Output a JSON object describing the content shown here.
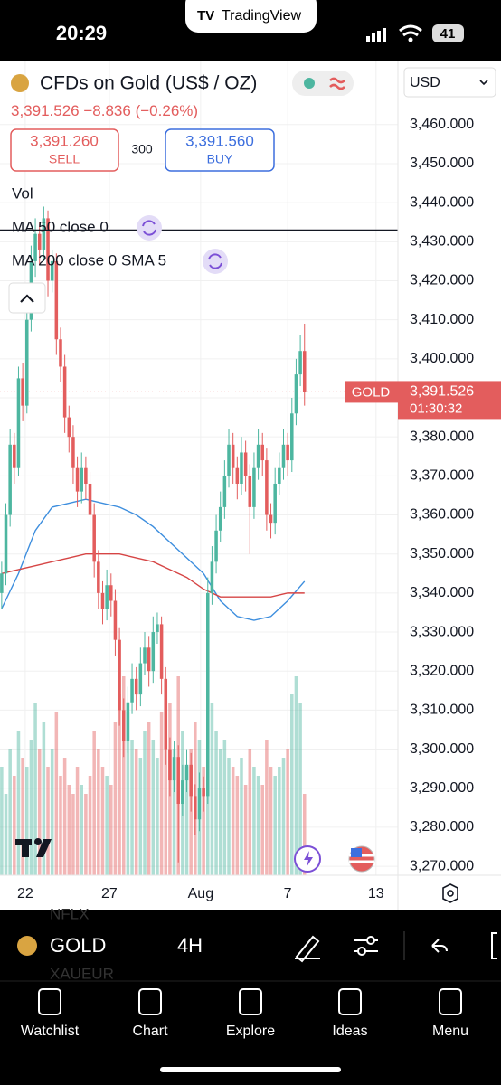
{
  "status_bar": {
    "time": "20:29",
    "app": "TradingView",
    "battery": "41"
  },
  "header": {
    "title": "CFDs on Gold (US$ / OZ)",
    "price": "3,391.526",
    "change": "−8.836",
    "change_pct": "(−0.26%)",
    "sell_price": "3,391.260",
    "sell": "SELL",
    "spread": "300",
    "buy_price": "3,391.560",
    "buy": "BUY",
    "volume_label": "Vol",
    "currency": "USD"
  },
  "chart_data": {
    "type": "candlestick",
    "candles": [
      [
        3340,
        3348,
        3336,
        3345
      ],
      [
        3345,
        3363,
        3342,
        3360
      ],
      [
        3360,
        3382,
        3357,
        3378
      ],
      [
        3378,
        3381,
        3368,
        3372
      ],
      [
        3372,
        3398,
        3370,
        3395
      ],
      [
        3395,
        3399,
        3384,
        3388
      ],
      [
        3388,
        3414,
        3386,
        3410
      ],
      [
        3410,
        3429,
        3407,
        3425
      ],
      [
        3425,
        3436,
        3421,
        3432
      ],
      [
        3432,
        3435,
        3424,
        3428
      ],
      [
        3428,
        3439,
        3425,
        3436
      ],
      [
        3436,
        3438,
        3416,
        3420
      ],
      [
        3420,
        3428,
        3417,
        3425
      ],
      [
        3425,
        3427,
        3401,
        3405
      ],
      [
        3405,
        3408,
        3394,
        3398
      ],
      [
        3398,
        3401,
        3381,
        3385
      ],
      [
        3385,
        3388,
        3376,
        3380
      ],
      [
        3380,
        3383,
        3368,
        3372
      ],
      [
        3372,
        3375,
        3362,
        3366
      ],
      [
        3366,
        3376,
        3363,
        3372
      ],
      [
        3372,
        3375,
        3364,
        3368
      ],
      [
        3368,
        3371,
        3356,
        3360
      ],
      [
        3360,
        3363,
        3344,
        3348
      ],
      [
        3348,
        3351,
        3336,
        3340
      ],
      [
        3340,
        3343,
        3332,
        3336
      ],
      [
        3336,
        3346,
        3333,
        3342
      ],
      [
        3342,
        3345,
        3334,
        3338
      ],
      [
        3338,
        3341,
        3324,
        3328
      ],
      [
        3328,
        3331,
        3306,
        3310
      ],
      [
        3310,
        3313,
        3298,
        3302
      ],
      [
        3302,
        3316,
        3299,
        3312
      ],
      [
        3312,
        3322,
        3309,
        3318
      ],
      [
        3318,
        3321,
        3310,
        3314
      ],
      [
        3314,
        3326,
        3311,
        3322
      ],
      [
        3322,
        3330,
        3319,
        3326
      ],
      [
        3326,
        3329,
        3316,
        3320
      ],
      [
        3320,
        3334,
        3317,
        3330
      ],
      [
        3330,
        3335,
        3327,
        3332
      ],
      [
        3332,
        3334,
        3314,
        3318
      ],
      [
        3318,
        3321,
        3296,
        3300
      ],
      [
        3300,
        3303,
        3288,
        3292
      ],
      [
        3292,
        3302,
        3289,
        3298
      ],
      [
        3298,
        3301,
        3271,
        3286
      ],
      [
        3286,
        3296,
        3283,
        3292
      ],
      [
        3292,
        3300,
        3289,
        3296
      ],
      [
        3296,
        3299,
        3284,
        3288
      ],
      [
        3288,
        3291,
        3278,
        3282
      ],
      [
        3282,
        3294,
        3279,
        3290
      ],
      [
        3290,
        3293,
        3284,
        3288
      ],
      [
        3288,
        3344,
        3286,
        3340
      ],
      [
        3340,
        3352,
        3337,
        3348
      ],
      [
        3348,
        3360,
        3345,
        3356
      ],
      [
        3356,
        3366,
        3353,
        3362
      ],
      [
        3362,
        3374,
        3359,
        3370
      ],
      [
        3370,
        3382,
        3367,
        3378
      ],
      [
        3378,
        3381,
        3368,
        3372
      ],
      [
        3372,
        3375,
        3364,
        3368
      ],
      [
        3368,
        3380,
        3365,
        3376
      ],
      [
        3376,
        3379,
        3366,
        3370
      ],
      [
        3370,
        3373,
        3350,
        3362
      ],
      [
        3362,
        3376,
        3359,
        3372
      ],
      [
        3372,
        3382,
        3369,
        3378
      ],
      [
        3378,
        3381,
        3370,
        3374
      ],
      [
        3374,
        3377,
        3356,
        3360
      ],
      [
        3360,
        3363,
        3354,
        3358
      ],
      [
        3358,
        3372,
        3355,
        3368
      ],
      [
        3368,
        3376,
        3365,
        3372
      ],
      [
        3372,
        3382,
        3369,
        3378
      ],
      [
        3378,
        3381,
        3370,
        3374
      ],
      [
        3374,
        3390,
        3371,
        3386
      ],
      [
        3386,
        3400,
        3383,
        3396
      ],
      [
        3396,
        3406,
        3393,
        3402
      ],
      [
        3402,
        3409,
        3388,
        3391.526
      ]
    ],
    "volume": [
      60,
      45,
      70,
      55,
      80,
      65,
      60,
      75,
      95,
      70,
      85,
      60,
      70,
      90,
      55,
      65,
      50,
      45,
      60,
      50,
      45,
      55,
      80,
      70,
      60,
      55,
      50,
      85,
      100,
      110,
      90,
      75,
      70,
      65,
      80,
      85,
      75,
      65,
      90,
      105,
      95,
      70,
      110,
      80,
      60,
      70,
      85,
      75,
      60,
      115,
      95,
      80,
      70,
      75,
      65,
      60,
      55,
      65,
      50,
      70,
      60,
      55,
      50,
      75,
      60,
      55,
      60,
      65,
      70,
      100,
      110,
      95,
      45
    ],
    "up_color": "#4db6a0",
    "down_color": "#e35d5d",
    "series": [
      {
        "name": "MA 50 close 0",
        "color": "#3d8ede",
        "x": [
          0,
          4,
          8,
          12,
          16,
          20,
          24,
          28,
          32,
          36,
          40,
          44,
          48,
          52,
          56,
          60,
          64,
          68,
          72
        ],
        "values": [
          3336,
          3345,
          3356,
          3362,
          3363,
          3364,
          3363,
          3362,
          3360,
          3357,
          3353,
          3349,
          3345,
          3338,
          3334,
          3333,
          3334,
          3338,
          3343
        ]
      },
      {
        "name": "MA 200 close 0 SMA 5",
        "color": "#d64545",
        "x": [
          0,
          4,
          8,
          12,
          16,
          20,
          24,
          28,
          32,
          36,
          40,
          44,
          48,
          52,
          56,
          60,
          64,
          68,
          72
        ],
        "values": [
          3345,
          3346,
          3347,
          3348,
          3349,
          3350,
          3350,
          3350,
          3349,
          3348,
          3346,
          3344,
          3341,
          3339,
          3339,
          3339,
          3339,
          3340,
          3340
        ]
      }
    ],
    "horizontal_line": 3433,
    "last_price": {
      "symbol": "GOLD",
      "value": 3391.526,
      "label": "3,391.526",
      "countdown": "01:30:32"
    },
    "xlim": [
      -0.4,
      94.2
    ],
    "xticks": [
      {
        "value": 5.6,
        "label": "22"
      },
      {
        "value": 25.6,
        "label": "27"
      },
      {
        "value": 47.3,
        "label": "Aug"
      },
      {
        "value": 68,
        "label": "7"
      },
      {
        "value": 89,
        "label": "13"
      }
    ],
    "ylim": [
      3267.7,
      3476.4
    ],
    "yticks": [
      {
        "value": 3270,
        "label": "3,270.000"
      },
      {
        "value": 3280,
        "label": "3,280.000"
      },
      {
        "value": 3290,
        "label": "3,290.000"
      },
      {
        "value": 3300,
        "label": "3,300.000"
      },
      {
        "value": 3310,
        "label": "3,310.000"
      },
      {
        "value": 3320,
        "label": "3,320.000"
      },
      {
        "value": 3330,
        "label": "3,330.000"
      },
      {
        "value": 3340,
        "label": "3,340.000"
      },
      {
        "value": 3350,
        "label": "3,350.000"
      },
      {
        "value": 3360,
        "label": "3,360.000"
      },
      {
        "value": 3370,
        "label": "3,370.000"
      },
      {
        "value": 3380,
        "label": "3,380.000"
      },
      {
        "value": 3390,
        "label": "3,390.000"
      },
      {
        "value": 3400,
        "label": "3,400.000"
      },
      {
        "value": 3410,
        "label": "3,410.000"
      },
      {
        "value": 3420,
        "label": "3,420.000"
      },
      {
        "value": 3430,
        "label": "3,430.000"
      },
      {
        "value": 3440,
        "label": "3,440.000"
      },
      {
        "value": 3450,
        "label": "3,450.000"
      },
      {
        "value": 3460,
        "label": "3,460.000"
      }
    ],
    "grid": true
  },
  "toolbar": {
    "symbol": "GOLD",
    "interval": "4H",
    "ghost_above": "NFLX",
    "ghost_below": "XAUEUR"
  },
  "nav": [
    "Watchlist",
    "Chart",
    "Explore",
    "Ideas",
    "Menu"
  ]
}
